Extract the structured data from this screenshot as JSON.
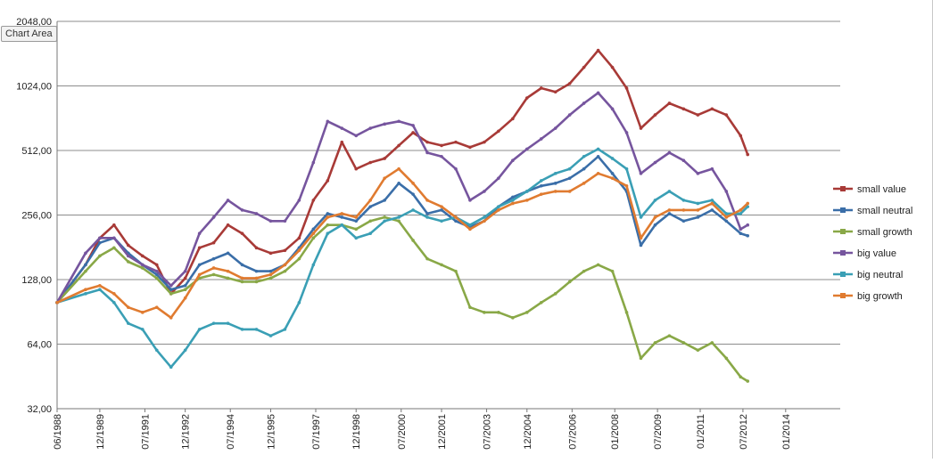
{
  "chart_tag": "Chart Area",
  "chart_data": {
    "type": "line",
    "title": "",
    "xlabel": "",
    "ylabel": "",
    "y_scale": "log2",
    "ylim": [
      32,
      2048
    ],
    "xlim": [
      "06/1988",
      "12/2015"
    ],
    "grid": true,
    "legend": "right",
    "y_ticks": [
      "2048,00",
      "1024,00",
      "512,00",
      "256,00",
      "128,00",
      "64,00",
      "32,00"
    ],
    "x_ticks": [
      "06/1988",
      "12/1989",
      "07/1991",
      "12/1992",
      "07/1994",
      "12/1995",
      "07/1997",
      "12/1998",
      "07/2000",
      "12/2001",
      "07/2003",
      "12/2004",
      "07/2006",
      "01/2008",
      "07/2009",
      "01/2011",
      "07/2012",
      "01/2014"
    ],
    "x": [
      "06/1988",
      "06/1989",
      "12/1989",
      "06/1990",
      "12/1990",
      "06/1991",
      "12/1991",
      "06/1992",
      "12/1992",
      "06/1993",
      "12/1993",
      "06/1994",
      "12/1994",
      "06/1995",
      "12/1995",
      "06/1996",
      "12/1996",
      "06/1997",
      "12/1997",
      "06/1998",
      "12/1998",
      "06/1999",
      "12/1999",
      "06/2000",
      "12/2000",
      "06/2001",
      "12/2001",
      "06/2002",
      "12/2002",
      "06/2003",
      "12/2003",
      "06/2004",
      "12/2004",
      "06/2005",
      "12/2005",
      "06/2006",
      "12/2006",
      "06/2007",
      "12/2007",
      "06/2008",
      "12/2008",
      "06/2009",
      "12/2009",
      "06/2010",
      "12/2010",
      "06/2011",
      "12/2011",
      "06/2012",
      "09/2012"
    ],
    "series": [
      {
        "name": "small value",
        "color": "#a83a37",
        "values": [
          100,
          150,
          200,
          230,
          185,
          165,
          150,
          110,
          130,
          180,
          190,
          230,
          210,
          180,
          170,
          175,
          200,
          300,
          370,
          560,
          420,
          450,
          470,
          540,
          620,
          560,
          540,
          560,
          530,
          560,
          630,
          720,
          900,
          1000,
          960,
          1050,
          1250,
          1500,
          1250,
          1000,
          650,
          750,
          850,
          800,
          750,
          800,
          750,
          600,
          490
        ]
      },
      {
        "name": "small neutral",
        "color": "#3a6ea8",
        "values": [
          100,
          150,
          190,
          200,
          170,
          150,
          135,
          115,
          120,
          150,
          160,
          170,
          150,
          140,
          140,
          150,
          180,
          220,
          260,
          250,
          240,
          280,
          300,
          360,
          320,
          260,
          270,
          240,
          225,
          240,
          280,
          310,
          330,
          350,
          360,
          380,
          420,
          480,
          400,
          330,
          185,
          230,
          260,
          240,
          250,
          270,
          240,
          210,
          205
        ]
      },
      {
        "name": "small growth",
        "color": "#89a847",
        "values": [
          100,
          140,
          165,
          180,
          155,
          145,
          130,
          110,
          115,
          130,
          135,
          130,
          125,
          125,
          130,
          140,
          160,
          200,
          230,
          230,
          220,
          240,
          250,
          240,
          195,
          160,
          150,
          140,
          95,
          90,
          90,
          85,
          90,
          100,
          110,
          125,
          140,
          150,
          140,
          90,
          55,
          65,
          70,
          65,
          60,
          65,
          55,
          45,
          43
        ]
      },
      {
        "name": "big value",
        "color": "#76559e",
        "values": [
          100,
          170,
          200,
          200,
          165,
          150,
          140,
          120,
          140,
          210,
          250,
          300,
          270,
          260,
          240,
          240,
          300,
          450,
          700,
          650,
          600,
          650,
          680,
          700,
          670,
          500,
          480,
          420,
          300,
          330,
          380,
          460,
          520,
          580,
          650,
          750,
          850,
          950,
          800,
          620,
          400,
          450,
          500,
          460,
          400,
          420,
          330,
          220,
          230
        ]
      },
      {
        "name": "big neutral",
        "color": "#3a9fb5",
        "values": [
          100,
          110,
          115,
          100,
          80,
          75,
          60,
          50,
          60,
          75,
          80,
          80,
          75,
          75,
          70,
          75,
          100,
          150,
          210,
          230,
          200,
          210,
          240,
          250,
          270,
          250,
          240,
          250,
          230,
          250,
          280,
          300,
          330,
          370,
          400,
          420,
          480,
          520,
          470,
          420,
          250,
          300,
          330,
          300,
          290,
          300,
          260,
          260,
          280
        ]
      },
      {
        "name": "big growth",
        "color": "#e07b30",
        "values": [
          100,
          115,
          120,
          110,
          95,
          90,
          95,
          85,
          105,
          135,
          145,
          140,
          130,
          130,
          135,
          150,
          175,
          210,
          250,
          260,
          250,
          300,
          380,
          420,
          360,
          300,
          280,
          250,
          220,
          240,
          270,
          290,
          300,
          320,
          330,
          330,
          360,
          400,
          380,
          350,
          200,
          250,
          270,
          270,
          270,
          290,
          250,
          270,
          290
        ]
      }
    ]
  }
}
